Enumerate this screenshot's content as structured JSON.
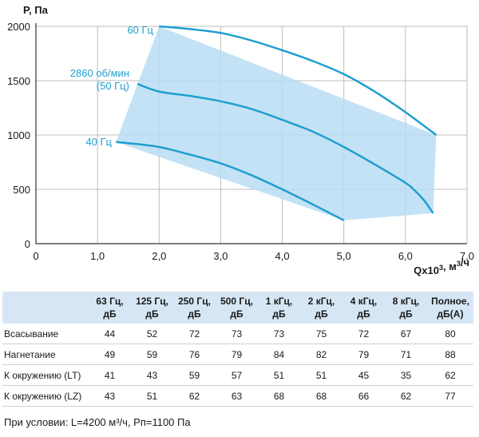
{
  "chart_data": {
    "type": "line",
    "ylabel": "P, Па",
    "xlabel": "Qx10³, м³/ч",
    "xlim": [
      0,
      7
    ],
    "ylim": [
      0,
      2000
    ],
    "x_ticks": [
      "0",
      "1,0",
      "2,0",
      "3,0",
      "4,0",
      "5,0",
      "6,0",
      "7,0"
    ],
    "y_ticks": [
      "0",
      "500",
      "1000",
      "1500",
      "2000"
    ],
    "grid": true,
    "fill_color": "#b8ddf3",
    "line_color": "#1f9fcf",
    "series": [
      {
        "name": "60 Гц",
        "x": [
          2.0,
          2.5,
          3.0,
          3.5,
          4.0,
          4.5,
          5.0,
          5.5,
          6.0,
          6.5
        ],
        "y": [
          2000,
          1975,
          1940,
          1870,
          1780,
          1680,
          1560,
          1400,
          1210,
          1000
        ]
      },
      {
        "name": "2860 об/мин\n(50 Гц)",
        "x": [
          1.65,
          2.0,
          2.5,
          3.0,
          3.5,
          4.0,
          4.5,
          5.0,
          5.5,
          6.0,
          6.15,
          6.3,
          6.45
        ],
        "y": [
          1470,
          1400,
          1360,
          1310,
          1240,
          1140,
          1030,
          890,
          730,
          560,
          490,
          400,
          280
        ]
      },
      {
        "name": "40 Гц",
        "x": [
          1.3,
          1.5,
          2.0,
          2.5,
          3.0,
          3.5,
          4.0,
          4.5,
          5.0
        ],
        "y": [
          935,
          925,
          890,
          820,
          740,
          630,
          500,
          360,
          215
        ]
      }
    ],
    "envelope": {
      "x": [
        1.3,
        2.0,
        6.5,
        6.45,
        5.0
      ],
      "y": [
        935,
        2000,
        1000,
        280,
        215
      ]
    }
  },
  "table": {
    "headers": [
      "",
      "63 Гц,\nдБ",
      "125 Гц,\nдБ",
      "250 Гц,\nдБ",
      "500 Гц,\nдБ",
      "1 кГц,\nдБ",
      "2 кГц,\nдБ",
      "4 кГц,\nдБ",
      "8 кГц,\nдБ",
      "Полное,\nдБ(А)"
    ],
    "rows": [
      [
        "Всасывание",
        "44",
        "52",
        "72",
        "73",
        "73",
        "75",
        "72",
        "67",
        "80"
      ],
      [
        "Нагнетание",
        "49",
        "59",
        "76",
        "79",
        "84",
        "82",
        "79",
        "71",
        "88"
      ],
      [
        "К окружению (LT)",
        "41",
        "43",
        "59",
        "57",
        "51",
        "51",
        "45",
        "35",
        "62"
      ],
      [
        "К окружению (LZ)",
        "43",
        "51",
        "62",
        "63",
        "68",
        "68",
        "66",
        "62",
        "77"
      ]
    ]
  },
  "footnote": "При условии: L=4200 м³/ч, Рп=1100 Па"
}
